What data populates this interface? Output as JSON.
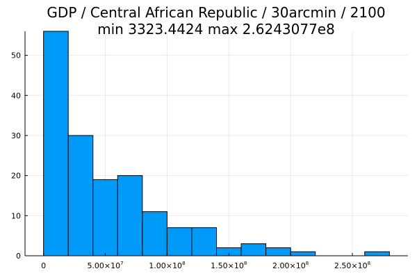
{
  "chart_data": {
    "type": "bar",
    "title": "GDP / Central African Republic / 30arcmin / 2100",
    "subtitle": "min 3323.4424  max 2.6243077e8",
    "xlabel": "",
    "ylabel": "",
    "xlim": [
      -15000000,
      295000000
    ],
    "ylim": [
      0,
      56
    ],
    "bin_width": 20000000,
    "bins": [
      {
        "x0": 0,
        "x1": 20000000,
        "count": 56
      },
      {
        "x0": 20000000,
        "x1": 40000000,
        "count": 30
      },
      {
        "x0": 40000000,
        "x1": 60000000,
        "count": 19
      },
      {
        "x0": 60000000,
        "x1": 80000000,
        "count": 20
      },
      {
        "x0": 80000000,
        "x1": 100000000,
        "count": 11
      },
      {
        "x0": 100000000,
        "x1": 120000000,
        "count": 7
      },
      {
        "x0": 120000000,
        "x1": 140000000,
        "count": 7
      },
      {
        "x0": 140000000,
        "x1": 160000000,
        "count": 2
      },
      {
        "x0": 160000000,
        "x1": 180000000,
        "count": 3
      },
      {
        "x0": 180000000,
        "x1": 200000000,
        "count": 2
      },
      {
        "x0": 200000000,
        "x1": 220000000,
        "count": 1
      },
      {
        "x0": 220000000,
        "x1": 240000000,
        "count": 0
      },
      {
        "x0": 240000000,
        "x1": 260000000,
        "count": 0
      },
      {
        "x0": 260000000,
        "x1": 280000000,
        "count": 1
      }
    ],
    "x_ticks": [
      {
        "value": 0,
        "mantissa": "0",
        "exponent": ""
      },
      {
        "value": 50000000,
        "mantissa": "5.00×10",
        "exponent": "7"
      },
      {
        "value": 100000000,
        "mantissa": "1.00×10",
        "exponent": "8"
      },
      {
        "value": 150000000,
        "mantissa": "1.50×10",
        "exponent": "8"
      },
      {
        "value": 200000000,
        "mantissa": "2.00×10",
        "exponent": "8"
      },
      {
        "value": 250000000,
        "mantissa": "2.50×10",
        "exponent": "8"
      }
    ],
    "y_ticks": [
      0,
      10,
      20,
      30,
      40,
      50
    ],
    "grid": true,
    "legend": "none",
    "colors": {
      "bar_fill": "#009af9",
      "bar_stroke": "#000000"
    }
  }
}
